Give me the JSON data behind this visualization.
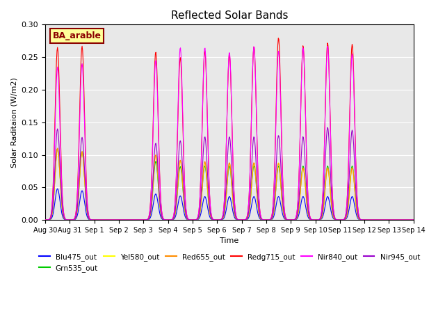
{
  "title": "Reflected Solar Bands",
  "xlabel": "Time",
  "ylabel": "Solar Raditaion (W/m2)",
  "ylim": [
    0,
    0.3
  ],
  "yticks": [
    0.0,
    0.05,
    0.1,
    0.15,
    0.2,
    0.25,
    0.3
  ],
  "annotation_text": "BA_arable",
  "annotation_color": "#8B0000",
  "annotation_bg": "#FFFF99",
  "background_color": "#E8E8E8",
  "series": [
    {
      "name": "Blu475_out",
      "color": "#0000FF",
      "zorder": 2
    },
    {
      "name": "Grn535_out",
      "color": "#00CC00",
      "zorder": 3
    },
    {
      "name": "Yel580_out",
      "color": "#FFFF00",
      "zorder": 4
    },
    {
      "name": "Red655_out",
      "color": "#FF8C00",
      "zorder": 5
    },
    {
      "name": "Redg715_out",
      "color": "#FF0000",
      "zorder": 6
    },
    {
      "name": "Nir840_out",
      "color": "#FF00FF",
      "zorder": 7
    },
    {
      "name": "Nir945_out",
      "color": "#9900CC",
      "zorder": 8
    }
  ],
  "xtick_positions": [
    0,
    1,
    2,
    3,
    4,
    5,
    6,
    7,
    8,
    9,
    10,
    11,
    12,
    13,
    14,
    15
  ],
  "xtick_labels": [
    "Aug 30",
    "Aug 31",
    "Sep 1",
    "Sep 2",
    "Sep 3",
    "Sep 4",
    "Sep 5",
    "Sep 6",
    "Sep 7",
    "Sep 8",
    "Sep 9",
    "Sep 10",
    "Sep 11",
    "Sep 12",
    "Sep 13",
    "Sep 14"
  ],
  "day_peaks": {
    "Blu475_out": [
      0.048,
      0.045,
      0.0,
      0.0,
      0.04,
      0.037,
      0.036,
      0.036,
      0.036,
      0.036,
      0.036,
      0.036,
      0.036,
      0.0,
      0.0
    ],
    "Grn535_out": [
      0.11,
      0.105,
      0.0,
      0.0,
      0.09,
      0.082,
      0.083,
      0.083,
      0.083,
      0.083,
      0.083,
      0.083,
      0.083,
      0.0,
      0.0
    ],
    "Yel580_out": [
      0.11,
      0.105,
      0.0,
      0.0,
      0.1,
      0.09,
      0.088,
      0.088,
      0.088,
      0.088,
      0.08,
      0.08,
      0.08,
      0.0,
      0.0
    ],
    "Red655_out": [
      0.11,
      0.105,
      0.0,
      0.0,
      0.1,
      0.092,
      0.09,
      0.088,
      0.088,
      0.087,
      0.08,
      0.08,
      0.08,
      0.0,
      0.0
    ],
    "Redg715_out": [
      0.265,
      0.267,
      0.0,
      0.0,
      0.258,
      0.25,
      0.26,
      0.255,
      0.267,
      0.28,
      0.268,
      0.272,
      0.27,
      0.0,
      0.0
    ],
    "Nir840_out": [
      0.235,
      0.24,
      0.0,
      0.0,
      0.245,
      0.265,
      0.265,
      0.258,
      0.267,
      0.26,
      0.265,
      0.267,
      0.255,
      0.0,
      0.0
    ],
    "Nir945_out": [
      0.14,
      0.127,
      0.0,
      0.0,
      0.118,
      0.122,
      0.128,
      0.128,
      0.128,
      0.13,
      0.128,
      0.142,
      0.138,
      0.0,
      0.0
    ]
  }
}
